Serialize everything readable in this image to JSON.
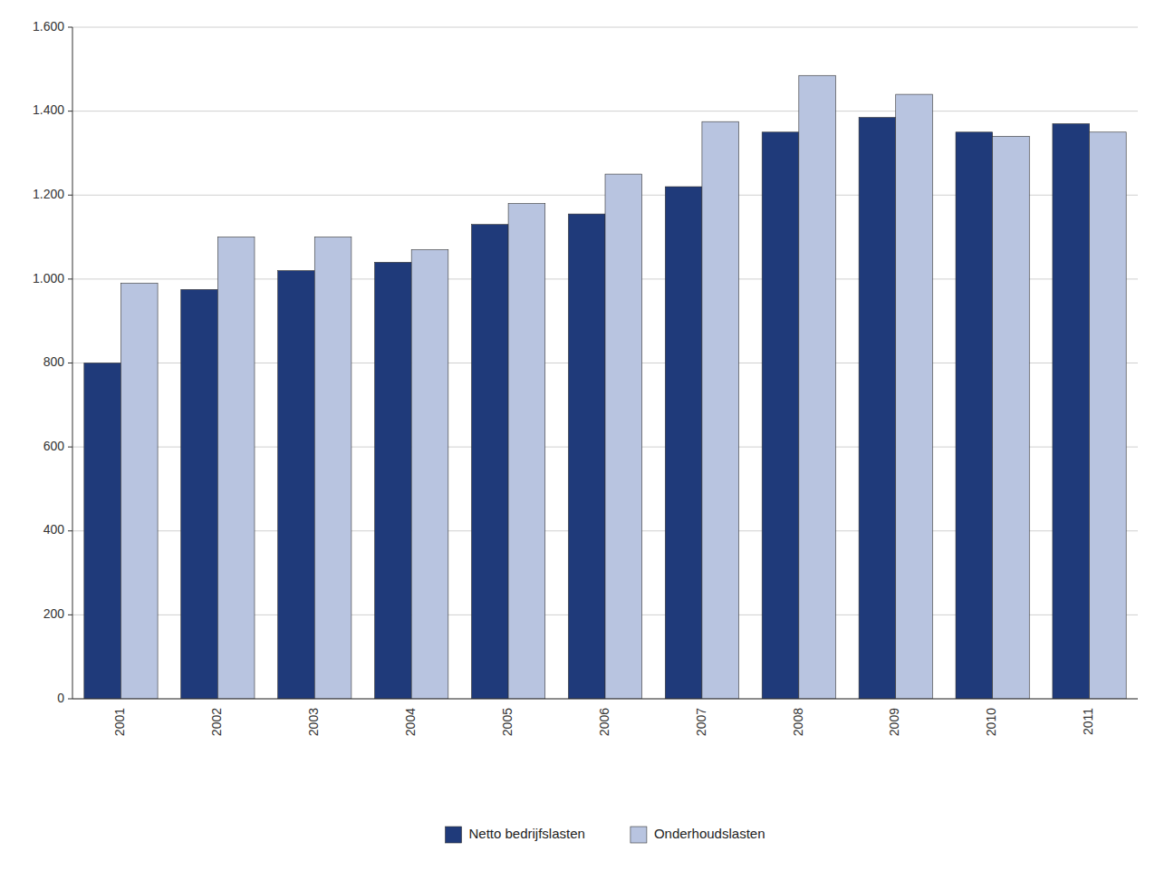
{
  "chart_data": {
    "type": "bar",
    "categories": [
      "2001",
      "2002",
      "2003",
      "2004",
      "2005",
      "2006",
      "2007",
      "2008",
      "2009",
      "2010",
      "2011"
    ],
    "series": [
      {
        "name": "Netto bedrijfslasten",
        "color": "#1F3A7A",
        "values": [
          800,
          975,
          1020,
          1040,
          1130,
          1155,
          1220,
          1350,
          1385,
          1350,
          1370
        ]
      },
      {
        "name": "Onderhoudslasten",
        "color": "#B8C4E0",
        "values": [
          990,
          1100,
          1100,
          1070,
          1180,
          1250,
          1375,
          1485,
          1440,
          1340,
          1350
        ]
      }
    ],
    "ylim": [
      0,
      1600
    ],
    "yticks": [
      0,
      200,
      400,
      600,
      800,
      {
        "value": 1000,
        "label": "1.000"
      },
      {
        "value": 1200,
        "label": "1.200"
      },
      {
        "value": 1400,
        "label": "1.400"
      },
      {
        "value": 1600,
        "label": "1.600"
      }
    ],
    "grid": true,
    "legend": "bottom"
  }
}
